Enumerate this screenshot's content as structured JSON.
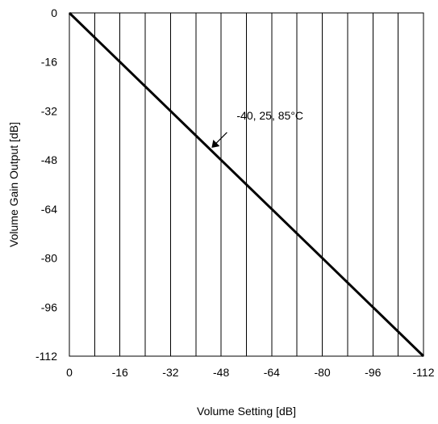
{
  "chart_data": {
    "type": "line",
    "title": "",
    "xlabel": "Volume Setting [dB]",
    "ylabel": "Volume Gain Output  [dB]",
    "xlim": [
      0,
      -112
    ],
    "ylim": [
      -112,
      0
    ],
    "x_ticks": [
      0,
      -16,
      -32,
      -48,
      -64,
      -80,
      -96,
      -112
    ],
    "y_ticks": [
      0,
      -16,
      -32,
      -48,
      -64,
      -80,
      -96,
      -112
    ],
    "grid": true,
    "x_minor_step": -8,
    "y_minor_step": -8,
    "series": [
      {
        "x": [
          0,
          -16,
          -32,
          -48,
          -64,
          -80,
          -96,
          -112
        ],
        "y": [
          0,
          -16,
          -32,
          -48,
          -64,
          -80,
          -96,
          -112
        ]
      }
    ],
    "annotations": [
      {
        "text": "-40, 25, 85°C",
        "arrow_to": [
          -45,
          -44
        ]
      }
    ]
  }
}
